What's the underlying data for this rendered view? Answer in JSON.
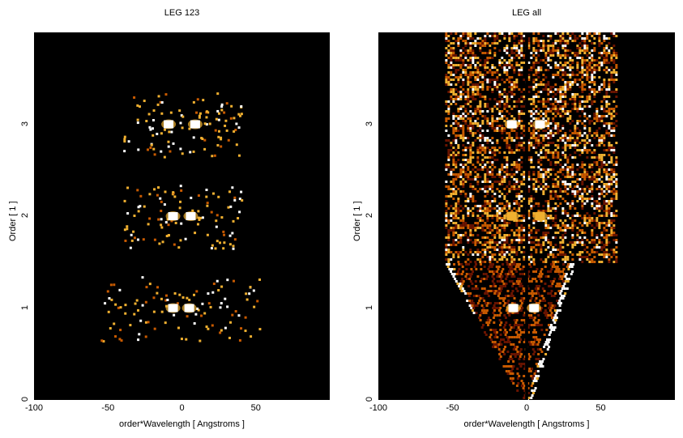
{
  "chart_data": [
    {
      "type": "heatmap",
      "title": "LEG 123",
      "xlabel": "order*Wavelength [ Angstroms ]",
      "ylabel": "Order [ 1 ]",
      "xlim": [
        -100,
        100
      ],
      "ylim": [
        0,
        4
      ],
      "xticks": [
        -100,
        -50,
        0,
        50
      ],
      "yticks": [
        0,
        1,
        2,
        3
      ],
      "colormap": [
        "#000000",
        "#6a1400",
        "#c85a00",
        "#f0b030",
        "#ffffff"
      ],
      "hot_spots": [
        {
          "x": -9,
          "y": 3.0,
          "intensity": 1.0
        },
        {
          "x": 9,
          "y": 3.0,
          "intensity": 1.0
        },
        {
          "x": -6,
          "y": 2.0,
          "intensity": 0.9
        },
        {
          "x": 6,
          "y": 2.0,
          "intensity": 0.9
        },
        {
          "x": -6,
          "y": 1.0,
          "intensity": 1.0
        },
        {
          "x": 5,
          "y": 1.0,
          "intensity": 1.0
        }
      ]
    },
    {
      "type": "heatmap",
      "title": "LEG all",
      "xlabel": "order*Wavelength [ Angstroms ]",
      "ylabel": "Order [ 1 ]",
      "xlim": [
        -100,
        100
      ],
      "ylim": [
        0,
        4
      ],
      "xticks": [
        -100,
        -50,
        0,
        50
      ],
      "yticks": [
        0,
        1,
        2,
        3
      ],
      "colormap": [
        "#000000",
        "#6a1400",
        "#c85a00",
        "#f0b030",
        "#ffffff"
      ],
      "hot_spots": [
        {
          "x": -10,
          "y": 3.0,
          "intensity": 1.0
        },
        {
          "x": 9,
          "y": 3.0,
          "intensity": 1.0
        },
        {
          "x": -10,
          "y": 2.0,
          "intensity": 0.8
        },
        {
          "x": 9,
          "y": 2.0,
          "intensity": 0.8
        },
        {
          "x": -9,
          "y": 1.0,
          "intensity": 1.0
        },
        {
          "x": 5,
          "y": 1.0,
          "intensity": 1.0
        }
      ]
    }
  ]
}
